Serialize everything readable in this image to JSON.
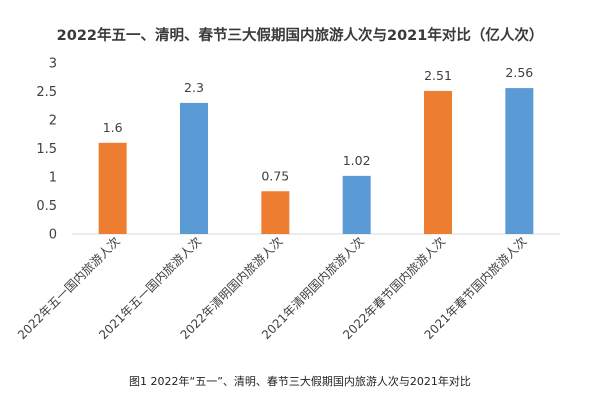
{
  "caption": "图1 2022年“五一”、清明、春节三大假期国内旅游人次与2021年对比",
  "chart_data": {
    "type": "bar",
    "title": "2022年五一、清明、春节三大假期国内旅游人次与2021年对比（亿人次）",
    "xlabel": "",
    "ylabel": "",
    "categories": [
      "2022年五一国内旅游人次",
      "2021年五一国内旅游人次",
      "2022年清明国内旅游人次",
      "2021年清明国内旅游人次",
      "2022年春节国内旅游人次",
      "2021年春节国内旅游人次"
    ],
    "values": [
      1.6,
      2.3,
      0.75,
      1.02,
      2.51,
      2.56
    ],
    "data_labels": [
      "1.6",
      "2.3",
      "0.75",
      "1.02",
      "2.51",
      "2.56"
    ],
    "colors": [
      "#ed7d31",
      "#5b9bd5",
      "#ed7d31",
      "#5b9bd5",
      "#ed7d31",
      "#5b9bd5"
    ],
    "ylim": [
      0,
      3
    ],
    "yticks": [
      "0",
      "0.5",
      "1",
      "1.5",
      "2",
      "2.5",
      "3"
    ],
    "grid": false,
    "legend": "none"
  }
}
